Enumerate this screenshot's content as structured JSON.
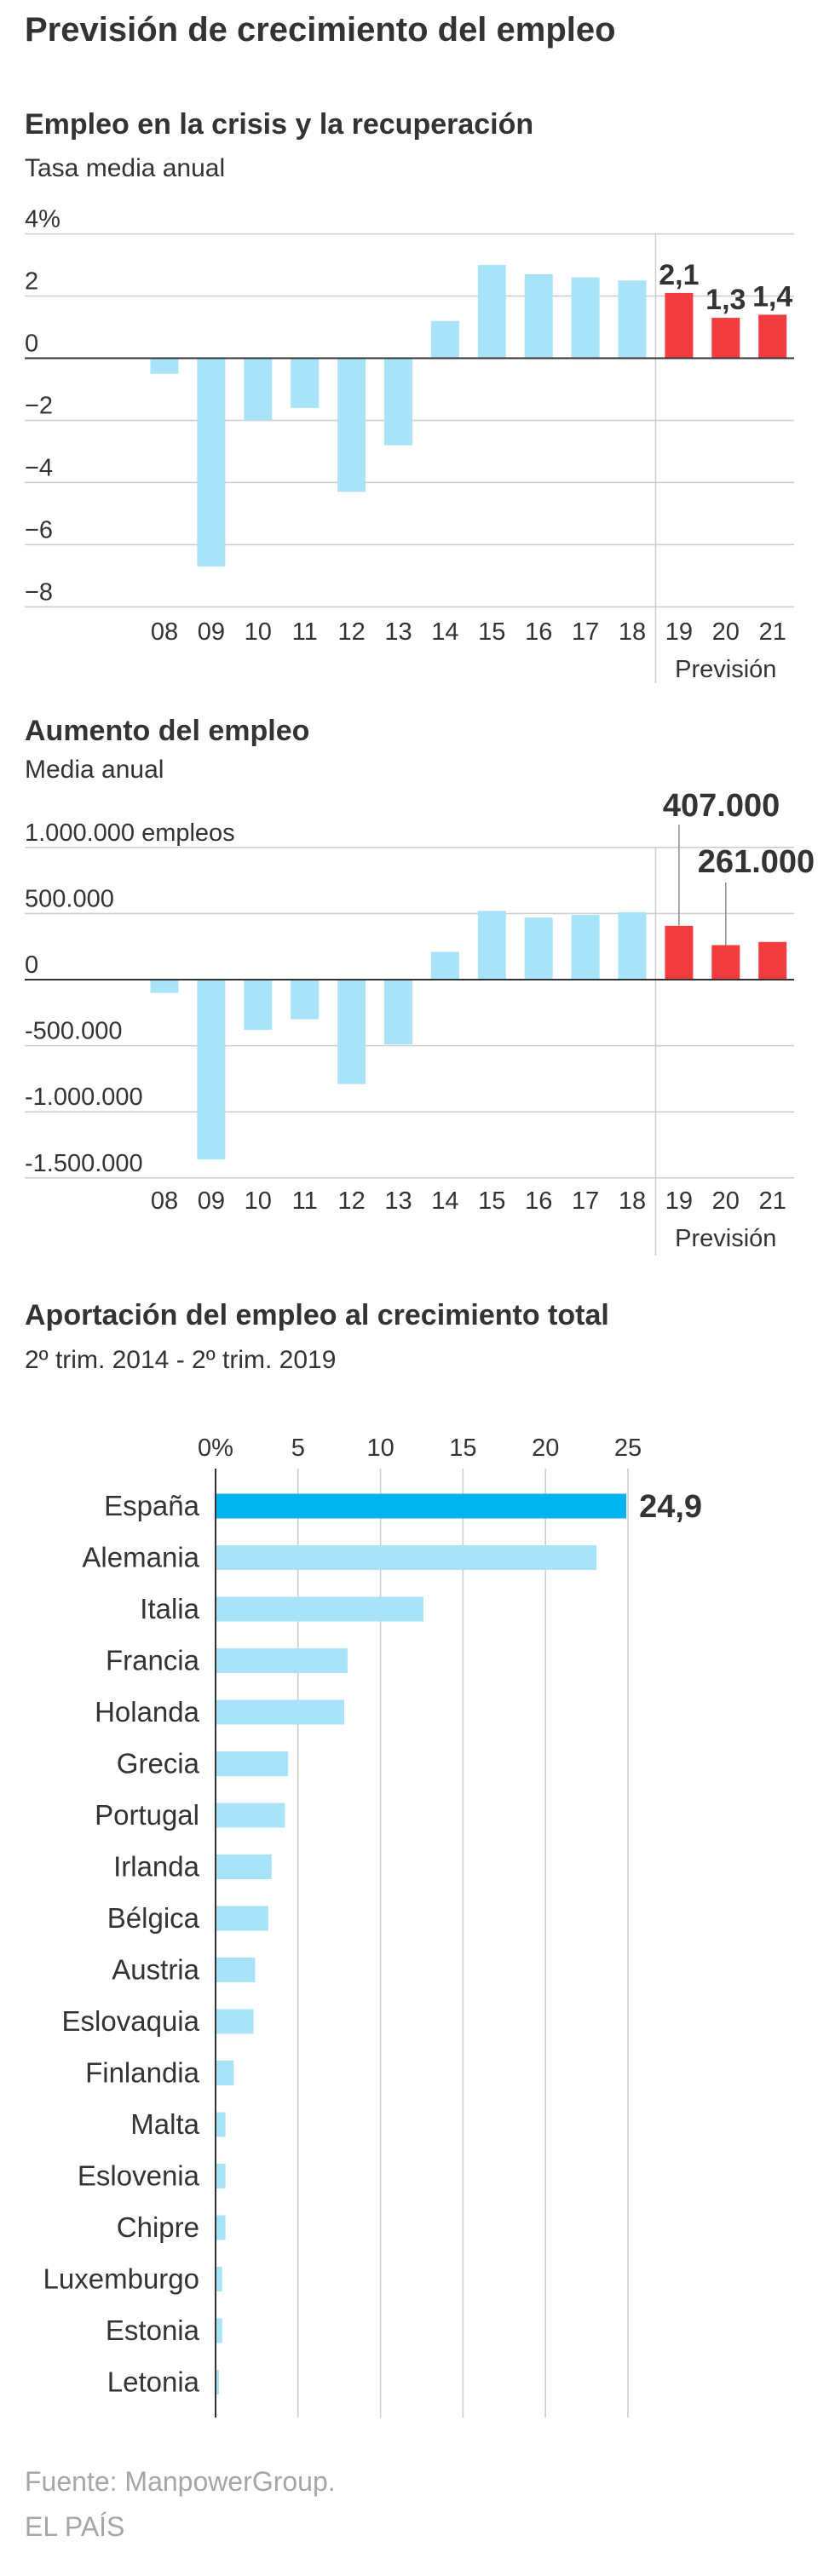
{
  "title": "Previsión de crecimiento del empleo",
  "colors": {
    "bar": "#a8e3fa",
    "forecast": "#f33c40",
    "highlight": "#00b4ef",
    "grid": "#cccccc",
    "axis": "#333333",
    "leader": "#8c8c8c"
  },
  "chart_data": [
    {
      "type": "bar",
      "title": "Empleo en la crisis y la recuperación",
      "subtitle": "Tasa media anual",
      "categories": [
        "08",
        "09",
        "10",
        "11",
        "12",
        "13",
        "14",
        "15",
        "16",
        "17",
        "18",
        "19",
        "20",
        "21"
      ],
      "values": [
        -0.5,
        -6.7,
        -2.0,
        -1.6,
        -4.3,
        -2.8,
        1.2,
        3.0,
        2.7,
        2.6,
        2.5,
        2.1,
        1.3,
        1.4
      ],
      "ylim": [
        -8,
        4
      ],
      "yticks": [
        4,
        2,
        0,
        -2,
        -4,
        -6,
        -8
      ],
      "ytick_labels": [
        "4%",
        "2",
        "0",
        "−2",
        "−4",
        "−6",
        "−8"
      ],
      "grid": true,
      "forecast_start_index": 11,
      "forecast_label": "Previsión",
      "annotations": [
        {
          "index": 11,
          "text": "2,1"
        },
        {
          "index": 12,
          "text": "1,3"
        },
        {
          "index": 13,
          "text": "1,4"
        }
      ]
    },
    {
      "type": "bar",
      "title": "Aumento del empleo",
      "subtitle": "Media anual",
      "categories": [
        "08",
        "09",
        "10",
        "11",
        "12",
        "13",
        "14",
        "15",
        "16",
        "17",
        "18",
        "19",
        "20",
        "21"
      ],
      "values": [
        -100000,
        -1360000,
        -380000,
        -300000,
        -790000,
        -490000,
        210000,
        520000,
        470000,
        490000,
        510000,
        407000,
        261000,
        285000
      ],
      "ylim": [
        -1500000,
        1000000
      ],
      "yticks": [
        1000000,
        500000,
        0,
        -500000,
        -1000000,
        -1500000
      ],
      "ytick_labels": [
        "1.000.000 empleos",
        "500.000",
        "0",
        "-500.000",
        "-1.000.000",
        "-1.500.000"
      ],
      "grid": true,
      "forecast_start_index": 11,
      "forecast_label": "Previsión",
      "annotations": [
        {
          "index": 11,
          "text": "407.000"
        },
        {
          "index": 12,
          "text": "261.000"
        }
      ]
    },
    {
      "type": "bar",
      "orientation": "horizontal",
      "title": "Aportación del empleo al crecimiento total",
      "subtitle": "2º trim. 2014 - 2º trim. 2019",
      "categories": [
        "España",
        "Alemania",
        "Italia",
        "Francia",
        "Holanda",
        "Grecia",
        "Portugal",
        "Irlanda",
        "Bélgica",
        "Austria",
        "Eslovaquia",
        "Finlandia",
        "Malta",
        "Eslovenia",
        "Chipre",
        "Luxemburgo",
        "Estonia",
        "Letonia"
      ],
      "values": [
        24.9,
        23.1,
        12.6,
        8.0,
        7.8,
        4.4,
        4.2,
        3.4,
        3.2,
        2.4,
        2.3,
        1.1,
        0.6,
        0.6,
        0.6,
        0.4,
        0.4,
        0.2
      ],
      "xlim": [
        0,
        25
      ],
      "xticks": [
        0,
        5,
        10,
        15,
        20,
        25
      ],
      "xtick_labels": [
        "0%",
        "5",
        "10",
        "15",
        "20",
        "25"
      ],
      "grid": true,
      "highlight_index": 0,
      "annotations": [
        {
          "index": 0,
          "text": "24,9"
        }
      ]
    }
  ],
  "footer": {
    "source": "Fuente: ManpowerGroup.",
    "brand": "EL PAÍS"
  }
}
